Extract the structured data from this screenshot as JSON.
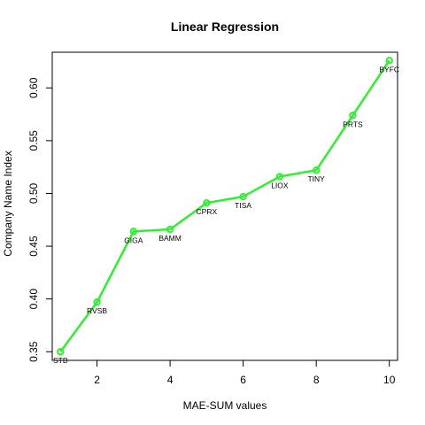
{
  "chart_data": {
    "type": "line",
    "title": "Linear Regression",
    "xlabel": "MAE-SUM values",
    "ylabel": "Company Name Index",
    "xlim": [
      0.775,
      10.225
    ],
    "ylim": [
      0.3418,
      0.6338
    ],
    "x_ticks": [
      2,
      4,
      6,
      8,
      10
    ],
    "y_ticks": [
      0.35,
      0.4,
      0.45,
      0.5,
      0.55,
      0.6
    ],
    "x_tick_labels": [
      "2",
      "4",
      "6",
      "8",
      "10"
    ],
    "y_tick_labels": [
      "0.35",
      "0.40",
      "0.45",
      "0.50",
      "0.55",
      "0.60"
    ],
    "grid": false,
    "legend": "none",
    "series": [
      {
        "color": "#33ee33",
        "points": [
          {
            "x": 1,
            "y": 0.35,
            "label": "STB"
          },
          {
            "x": 2,
            "y": 0.397,
            "label": "RVSB"
          },
          {
            "x": 3,
            "y": 0.464,
            "label": "GIGA"
          },
          {
            "x": 4,
            "y": 0.466,
            "label": "BAMM"
          },
          {
            "x": 5,
            "y": 0.491,
            "label": "CPRX"
          },
          {
            "x": 6,
            "y": 0.497,
            "label": "TISA"
          },
          {
            "x": 7,
            "y": 0.516,
            "label": "LIOX"
          },
          {
            "x": 8,
            "y": 0.522,
            "label": "TINY"
          },
          {
            "x": 9,
            "y": 0.574,
            "label": "PRTS"
          },
          {
            "x": 10,
            "y": 0.626,
            "label": "BYFC"
          }
        ]
      }
    ]
  }
}
